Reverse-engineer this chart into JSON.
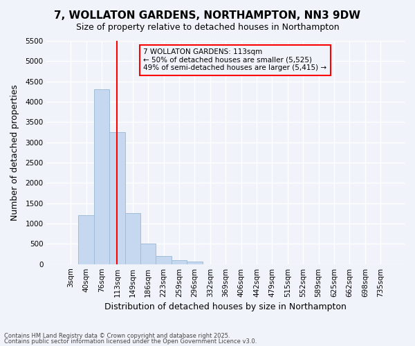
{
  "title1": "7, WOLLATON GARDENS, NORTHAMPTON, NN3 9DW",
  "title2": "Size of property relative to detached houses in Northampton",
  "xlabel": "Distribution of detached houses by size in Northampton",
  "ylabel": "Number of detached properties",
  "categories": [
    "3sqm",
    "40sqm",
    "76sqm",
    "113sqm",
    "149sqm",
    "186sqm",
    "223sqm",
    "259sqm",
    "296sqm",
    "332sqm",
    "369sqm",
    "406sqm",
    "442sqm",
    "479sqm",
    "515sqm",
    "552sqm",
    "589sqm",
    "625sqm",
    "662sqm",
    "698sqm",
    "735sqm"
  ],
  "values": [
    0,
    1200,
    4300,
    3250,
    1250,
    500,
    200,
    100,
    70,
    0,
    0,
    0,
    0,
    0,
    0,
    0,
    0,
    0,
    0,
    0,
    0
  ],
  "bar_color": "#c5d8f0",
  "bar_edge_color": "#a0bcd8",
  "vline_x": 3,
  "vline_color": "red",
  "annotation_text": "7 WOLLATON GARDENS: 113sqm\n← 50% of detached houses are smaller (5,525)\n49% of semi-detached houses are larger (5,415) →",
  "annotation_box_color": "red",
  "ylim": [
    0,
    5500
  ],
  "yticks": [
    0,
    500,
    1000,
    1500,
    2000,
    2500,
    3000,
    3500,
    4000,
    4500,
    5000,
    5500
  ],
  "footer1": "Contains HM Land Registry data © Crown copyright and database right 2025.",
  "footer2": "Contains public sector information licensed under the Open Government Licence v3.0.",
  "bg_color": "#f0f4fa",
  "grid_color": "white",
  "title_fontsize": 11,
  "axis_fontsize": 9,
  "tick_fontsize": 7.5
}
